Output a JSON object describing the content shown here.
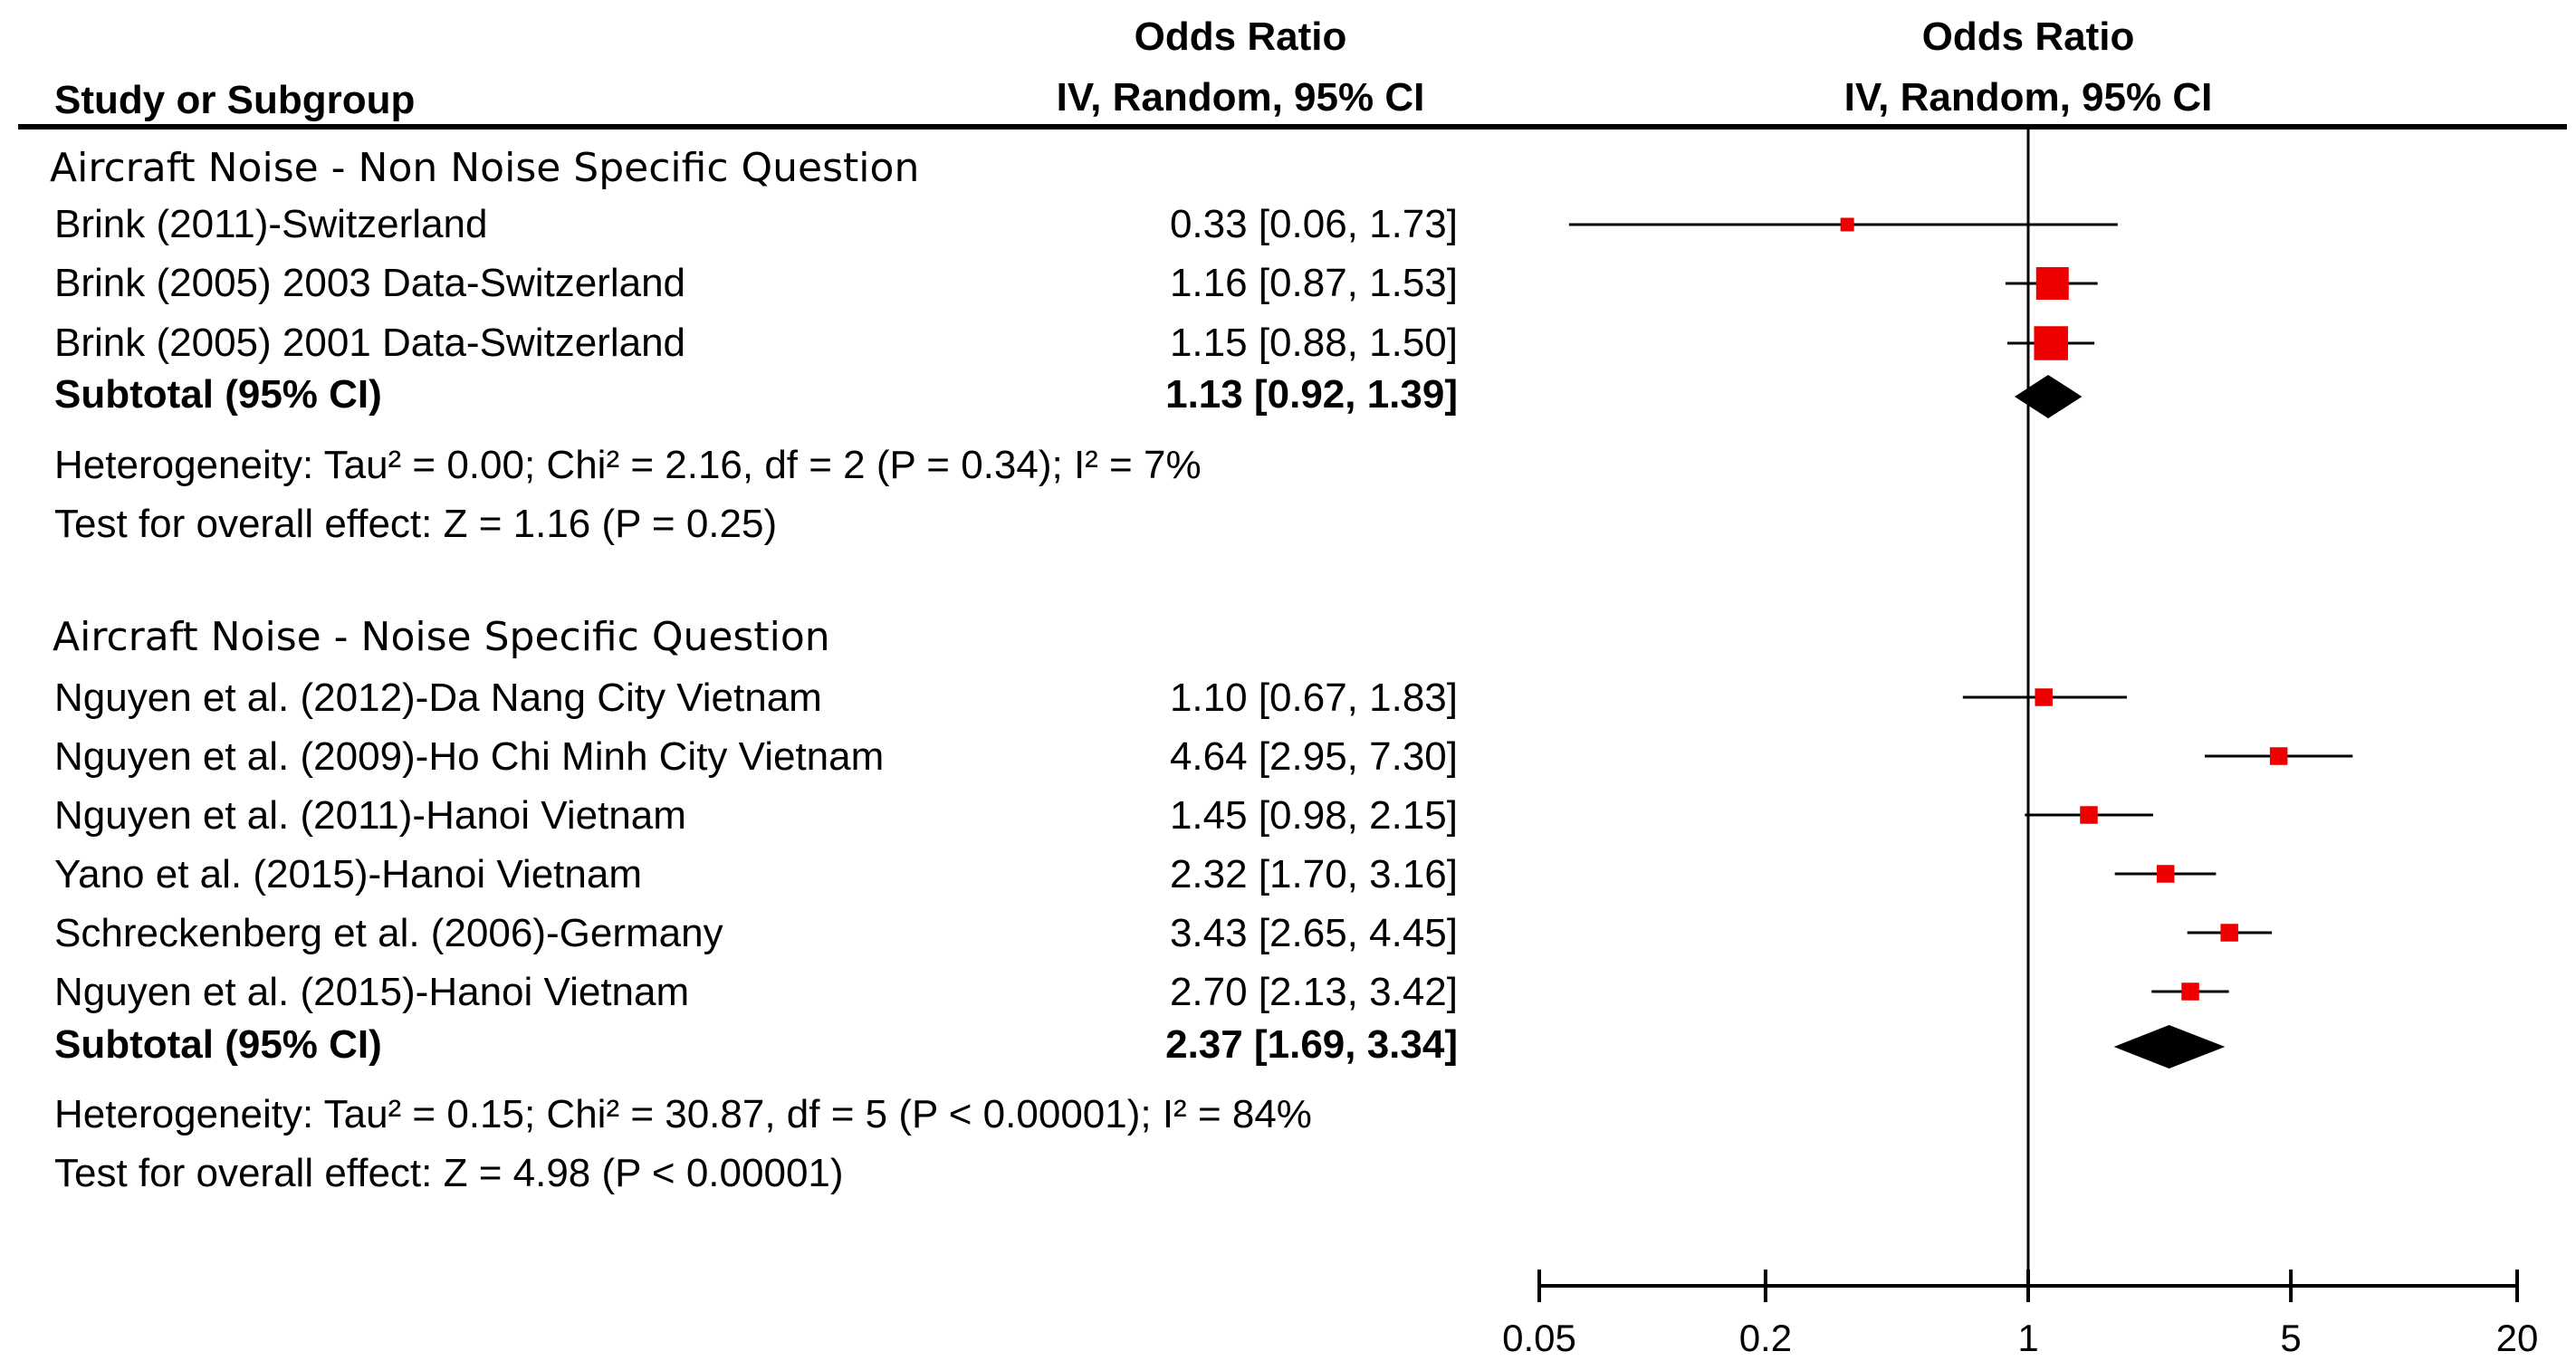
{
  "chart_data": {
    "type": "forest",
    "scale": "log",
    "header": {
      "col1": "Study or Subgroup",
      "col2_line1": "Odds Ratio",
      "col2_line2": "IV, Random, 95% CI",
      "col3_line1": "Odds Ratio",
      "col3_line2": "IV, Random, 95% CI"
    },
    "xlim": [
      0.05,
      20
    ],
    "ticks": [
      {
        "value": 0.05,
        "label": "0.05"
      },
      {
        "value": 0.2,
        "label": "0.2"
      },
      {
        "value": 1,
        "label": "1"
      },
      {
        "value": 5,
        "label": "5"
      },
      {
        "value": 20,
        "label": "20"
      }
    ],
    "groups": [
      {
        "title": "Aircraft Noise - Non Noise Specific Question",
        "studies": [
          {
            "name": "Brink (2011)-Switzerland",
            "label": "0.33 [0.06, 1.73]",
            "or": 0.33,
            "lo": 0.06,
            "hi": 1.73,
            "weight": 0.3
          },
          {
            "name": "Brink (2005) 2003 Data-Switzerland",
            "label": "1.16 [0.87, 1.53]",
            "or": 1.16,
            "lo": 0.87,
            "hi": 1.53,
            "weight": 1.0
          },
          {
            "name": "Brink (2005) 2001 Data-Switzerland",
            "label": "1.15 [0.88, 1.50]",
            "or": 1.15,
            "lo": 0.88,
            "hi": 1.5,
            "weight": 1.05
          }
        ],
        "subtotal": {
          "name": "Subtotal (95% CI)",
          "label": "1.13 [0.92, 1.39]",
          "or": 1.13,
          "lo": 0.92,
          "hi": 1.39
        },
        "heterogeneity": "Heterogeneity: Tau² = 0.00; Chi² = 2.16, df = 2 (P = 0.34); I² = 7%",
        "overall": "Test for overall effect: Z = 1.16 (P = 0.25)"
      },
      {
        "title": "Aircraft Noise - Noise Specific Question",
        "studies": [
          {
            "name": "Nguyen et al. (2012)-Da Nang City Vietnam",
            "label": "1.10 [0.67, 1.83]",
            "or": 1.1,
            "lo": 0.67,
            "hi": 1.83,
            "weight": 0.45
          },
          {
            "name": "Nguyen et al. (2009)-Ho Chi Minh City Vietnam",
            "label": "4.64 [2.95, 7.30]",
            "or": 4.64,
            "lo": 2.95,
            "hi": 7.3,
            "weight": 0.45
          },
          {
            "name": "Nguyen et al. (2011)-Hanoi Vietnam",
            "label": "1.45 [0.98, 2.15]",
            "or": 1.45,
            "lo": 0.98,
            "hi": 2.15,
            "weight": 0.45
          },
          {
            "name": "Yano et al. (2015)-Hanoi Vietnam",
            "label": "2.32 [1.70, 3.16]",
            "or": 2.32,
            "lo": 1.7,
            "hi": 3.16,
            "weight": 0.45
          },
          {
            "name": "Schreckenberg et al. (2006)-Germany",
            "label": "3.43 [2.65, 4.45]",
            "or": 3.43,
            "lo": 2.65,
            "hi": 4.45,
            "weight": 0.45
          },
          {
            "name": "Nguyen et al. (2015)-Hanoi Vietnam",
            "label": "2.70 [2.13, 3.42]",
            "or": 2.7,
            "lo": 2.13,
            "hi": 3.42,
            "weight": 0.45
          }
        ],
        "subtotal": {
          "name": "Subtotal (95% CI)",
          "label": "2.37 [1.69, 3.34]",
          "or": 2.37,
          "lo": 1.69,
          "hi": 3.34
        },
        "heterogeneity": "Heterogeneity: Tau² = 0.15; Chi² = 30.87, df = 5 (P < 0.00001); I² = 84%",
        "overall": "Test for overall effect: Z = 4.98 (P < 0.00001)"
      }
    ],
    "colors": {
      "point": "#ee0000",
      "diamond": "#000000",
      "line": "#000000"
    }
  }
}
